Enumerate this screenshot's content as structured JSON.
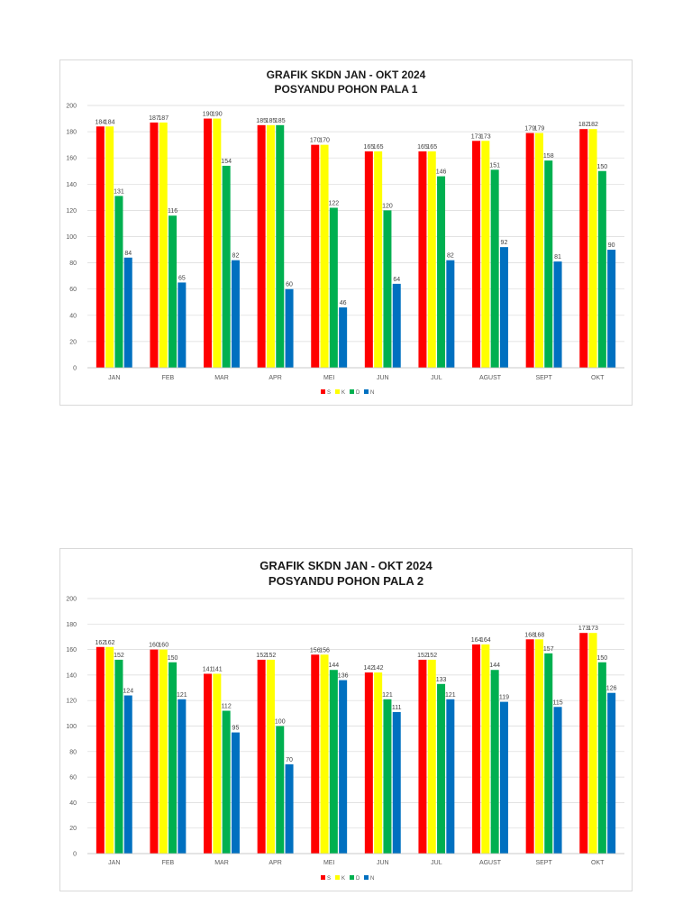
{
  "colors": {
    "S": "#ff0000",
    "K": "#ffff00",
    "D": "#00b050",
    "N": "#0070c0",
    "grid": "#d9d9d9"
  },
  "chart_data": [
    {
      "type": "bar",
      "title_line1": "GRAFIK SKDN JAN - OKT 2024",
      "title_line2": "POSYANDU POHON PALA 1",
      "categories": [
        "JAN",
        "FEB",
        "MAR",
        "APR",
        "MEI",
        "JUN",
        "JUL",
        "AGUST",
        "SEPT",
        "OKT"
      ],
      "series": [
        {
          "name": "S",
          "values": [
            184,
            187,
            190,
            185,
            170,
            165,
            165,
            173,
            179,
            182
          ]
        },
        {
          "name": "K",
          "values": [
            184,
            187,
            190,
            185,
            170,
            165,
            165,
            173,
            179,
            182
          ]
        },
        {
          "name": "D",
          "values": [
            131,
            116,
            154,
            185,
            122,
            120,
            146,
            151,
            158,
            150
          ]
        },
        {
          "name": "N",
          "values": [
            84,
            65,
            82,
            60,
            46,
            64,
            82,
            92,
            81,
            90
          ]
        }
      ],
      "ylim": [
        0,
        200
      ],
      "yticks": [
        0,
        20,
        40,
        60,
        80,
        100,
        120,
        140,
        160,
        180,
        200
      ],
      "grid": true,
      "legend": "bottom-center"
    },
    {
      "type": "bar",
      "title_line1": "GRAFIK SKDN JAN - OKT 2024",
      "title_line2": "POSYANDU POHON PALA 2",
      "categories": [
        "JAN",
        "FEB",
        "MAR",
        "APR",
        "MEI",
        "JUN",
        "JUL",
        "AGUST",
        "SEPT",
        "OKT"
      ],
      "series": [
        {
          "name": "S",
          "values": [
            162,
            160,
            141,
            152,
            156,
            142,
            152,
            164,
            168,
            173
          ]
        },
        {
          "name": "K",
          "values": [
            162,
            160,
            141,
            152,
            156,
            142,
            152,
            164,
            168,
            173
          ]
        },
        {
          "name": "D",
          "values": [
            152,
            150,
            112,
            100,
            144,
            121,
            133,
            144,
            157,
            150
          ]
        },
        {
          "name": "N",
          "values": [
            124,
            121,
            95,
            70,
            136,
            111,
            121,
            119,
            115,
            126
          ]
        }
      ],
      "ylim": [
        0,
        200
      ],
      "yticks": [
        0,
        20,
        40,
        60,
        80,
        100,
        120,
        140,
        160,
        180,
        200
      ],
      "grid": true,
      "legend": "bottom-center"
    }
  ]
}
